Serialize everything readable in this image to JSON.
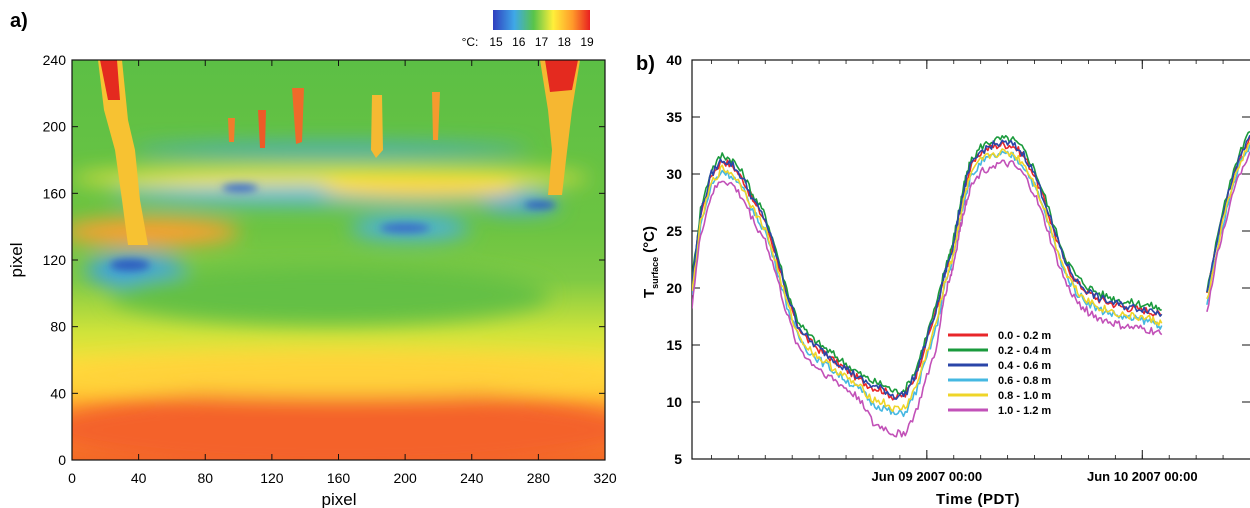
{
  "panels": {
    "a_label": "a)",
    "b_label": "b)"
  },
  "chart_data": [
    {
      "type": "heatmap",
      "panel": "a",
      "xlabel": "pixel",
      "ylabel": "pixel",
      "xlim": [
        0,
        320
      ],
      "ylim": [
        0,
        240
      ],
      "xticks": [
        "0",
        "40",
        "80",
        "120",
        "160",
        "200",
        "240",
        "280",
        "320"
      ],
      "yticks": [
        "0",
        "40",
        "80",
        "120",
        "160",
        "200",
        "240"
      ],
      "colorbar": {
        "unit_label": "°C:",
        "ticks": [
          "15",
          "16",
          "17",
          "18",
          "19"
        ],
        "range": [
          15,
          19
        ],
        "colors": [
          "#2f3fbf",
          "#3fa8e8",
          "#59c44a",
          "#ffef3a",
          "#ff9a2a",
          "#e82020"
        ]
      }
    },
    {
      "type": "line",
      "panel": "b",
      "xlabel": "Time (PDT)",
      "ylabel_main": "T",
      "ylabel_sub": "surface",
      "ylabel_unit": "(°C)",
      "ylim": [
        5,
        40
      ],
      "yticks": [
        "5",
        "10",
        "15",
        "20",
        "25",
        "30",
        "35",
        "40"
      ],
      "xlim": [
        -1.09,
        1.5
      ],
      "xtick_positions": [
        0,
        1
      ],
      "xtick_labels": [
        "Jun 09 2007 00:00",
        "Jun 10 2007 00:00"
      ],
      "x_unit": "days relative to Jun 09 2007 00:00",
      "series": [
        {
          "name": "0.0 - 0.2 m",
          "color": "#e8262a",
          "offset": 0.4
        },
        {
          "name": "0.2 - 0.4 m",
          "color": "#1a9a3c",
          "offset": 0.9
        },
        {
          "name": "0.4 - 0.6 m",
          "color": "#2a45a8",
          "offset": 0.5
        },
        {
          "name": "0.6 - 0.8 m",
          "color": "#45b8e2",
          "offset": -0.5
        },
        {
          "name": "0.8 - 1.0 m",
          "color": "#efd528",
          "offset": -0.3
        },
        {
          "name": "1.0 - 1.2 m",
          "color": "#c251b8",
          "offset": -1.3
        }
      ],
      "base_curve": {
        "x": [
          -1.09,
          -1.05,
          -1.0,
          -0.95,
          -0.9,
          -0.85,
          -0.8,
          -0.75,
          -0.7,
          -0.65,
          -0.6,
          -0.55,
          -0.5,
          -0.45,
          -0.4,
          -0.35,
          -0.3,
          -0.25,
          -0.2,
          -0.15,
          -0.1,
          -0.05,
          0.0,
          0.05,
          0.08,
          0.1,
          0.12,
          0.14,
          0.16,
          0.18,
          0.2,
          0.25,
          0.3,
          0.35,
          0.4,
          0.45,
          0.5,
          0.55,
          0.6,
          0.65,
          0.7,
          0.75,
          0.8,
          0.85,
          0.9,
          0.95,
          1.0,
          1.05,
          1.09
        ],
        "y": [
          19.8,
          26.0,
          29.5,
          30.8,
          30.3,
          29.0,
          27.0,
          25.5,
          22.5,
          19.0,
          16.3,
          15.0,
          14.2,
          13.5,
          12.8,
          12.1,
          11.4,
          10.9,
          10.6,
          10.0,
          10.2,
          12.0,
          15.0,
          18.0,
          20.5,
          21.8,
          23.0,
          25.0,
          27.0,
          28.7,
          30.0,
          31.5,
          32.0,
          32.2,
          32.1,
          31.2,
          29.5,
          27.0,
          24.0,
          21.5,
          20.0,
          19.2,
          18.6,
          18.3,
          18.0,
          17.8,
          17.7,
          17.5,
          17.2
        ]
      },
      "dip_curve": {
        "x": [
          0.0,
          0.05,
          0.08
        ],
        "y": [
          10.6,
          9.8,
          8.3
        ]
      },
      "end_curve": {
        "x": [
          1.3,
          1.35,
          1.4,
          1.45,
          1.5
        ],
        "y": [
          19.0,
          24.0,
          28.0,
          31.0,
          33.0
        ]
      }
    }
  ]
}
